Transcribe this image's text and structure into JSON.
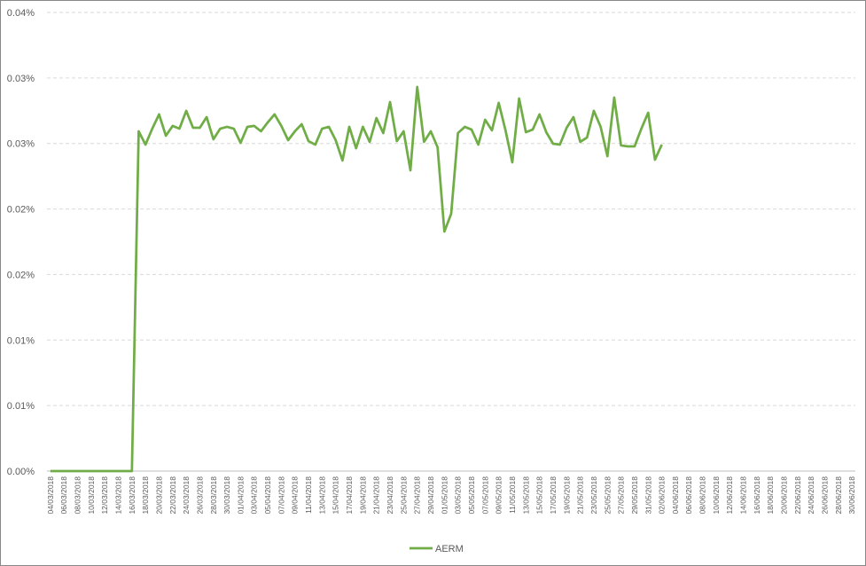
{
  "chart_data": {
    "type": "line",
    "categories": [
      "04/03/2018",
      null,
      "06/03/2018",
      null,
      "08/03/2018",
      null,
      "10/03/2018",
      null,
      "12/03/2018",
      null,
      "14/03/2018",
      null,
      "16/03/2018",
      null,
      "18/03/2018",
      null,
      "20/03/2018",
      null,
      "22/03/2018",
      null,
      "24/03/2018",
      null,
      "26/03/2018",
      null,
      "28/03/2018",
      null,
      "30/03/2018",
      null,
      "01/04/2018",
      null,
      "03/04/2018",
      null,
      "05/04/2018",
      null,
      "07/04/2018",
      null,
      "09/04/2018",
      null,
      "11/04/2018",
      null,
      "13/04/2018",
      null,
      "15/04/2018",
      null,
      "17/04/2018",
      null,
      "19/04/2018",
      null,
      "21/04/2018",
      null,
      "23/04/2018",
      null,
      "25/04/2018",
      null,
      "27/04/2018",
      null,
      "29/04/2018",
      null,
      "01/05/2018",
      null,
      "03/05/2018",
      null,
      "05/05/2018",
      null,
      "07/05/2018",
      null,
      "09/05/2018",
      null,
      "11/05/2018",
      null,
      "13/05/2018",
      null,
      "15/05/2018",
      null,
      "17/05/2018",
      null,
      "19/05/2018",
      null,
      "21/05/2018",
      null,
      "23/05/2018",
      null,
      "25/05/2018",
      null,
      "27/05/2018",
      null,
      "29/05/2018",
      null,
      "31/05/2018",
      null,
      "02/06/2018",
      null,
      "04/06/2018",
      null,
      "06/06/2018",
      null,
      "08/06/2018",
      null,
      "10/06/2018",
      null,
      "12/06/2018",
      null,
      "14/06/2018",
      null,
      "16/06/2018",
      null,
      "18/06/2018",
      null,
      "20/06/2018",
      null,
      "22/06/2018",
      null,
      "24/06/2018",
      null,
      "26/06/2018",
      null,
      "28/06/2018",
      null,
      "30/06/2018"
    ],
    "series": [
      {
        "name": "AERM",
        "color": "#70ad47",
        "values": [
          0,
          0,
          0,
          0,
          0,
          0,
          0,
          0,
          0,
          0,
          0,
          0,
          0,
          0.02593,
          0.02491,
          0.02613,
          0.02722,
          0.02559,
          0.02634,
          0.02613,
          0.02749,
          0.0262,
          0.0262,
          0.02701,
          0.02532,
          0.02613,
          0.02627,
          0.02613,
          0.02505,
          0.02627,
          0.02634,
          0.02593,
          0.02661,
          0.02722,
          0.02634,
          0.02525,
          0.02593,
          0.02647,
          0.02518,
          0.02491,
          0.02613,
          0.02627,
          0.02525,
          0.0237,
          0.02627,
          0.02464,
          0.02627,
          0.02512,
          0.02694,
          0.02579,
          0.02816,
          0.02518,
          0.02593,
          0.02295,
          0.02931,
          0.02512,
          0.02593,
          0.02471,
          0.01828,
          0.01963,
          0.02579,
          0.02627,
          0.02606,
          0.02491,
          0.02681,
          0.026,
          0.0281,
          0.026,
          0.02356,
          0.02843,
          0.02586,
          0.02606,
          0.02722,
          0.02586,
          0.02498,
          0.02491,
          0.0262,
          0.02701,
          0.02512,
          0.02546,
          0.02749,
          0.02627,
          0.02403,
          0.0285,
          0.02485,
          0.02478,
          0.02478,
          0.02613,
          0.02735,
          0.02376,
          0.02491,
          null,
          null,
          null,
          null,
          null,
          null,
          null,
          null,
          null,
          null,
          null,
          null,
          null,
          null,
          null,
          null,
          null,
          null,
          null,
          null,
          null,
          null,
          null,
          null,
          null,
          null,
          null,
          null
        ]
      }
    ],
    "ylim": [
      0,
      0.035
    ],
    "yticks": [
      {
        "value": 0,
        "label": "0.00%"
      },
      {
        "value": 0.005,
        "label": "0.01%"
      },
      {
        "value": 0.01,
        "label": "0.01%"
      },
      {
        "value": 0.015,
        "label": "0.02%"
      },
      {
        "value": 0.02,
        "label": "0.02%"
      },
      {
        "value": 0.025,
        "label": "0.03%"
      },
      {
        "value": 0.03,
        "label": "0.03%"
      },
      {
        "value": 0.035,
        "label": "0.04%"
      }
    ],
    "grid": true,
    "legend": "bottom"
  }
}
